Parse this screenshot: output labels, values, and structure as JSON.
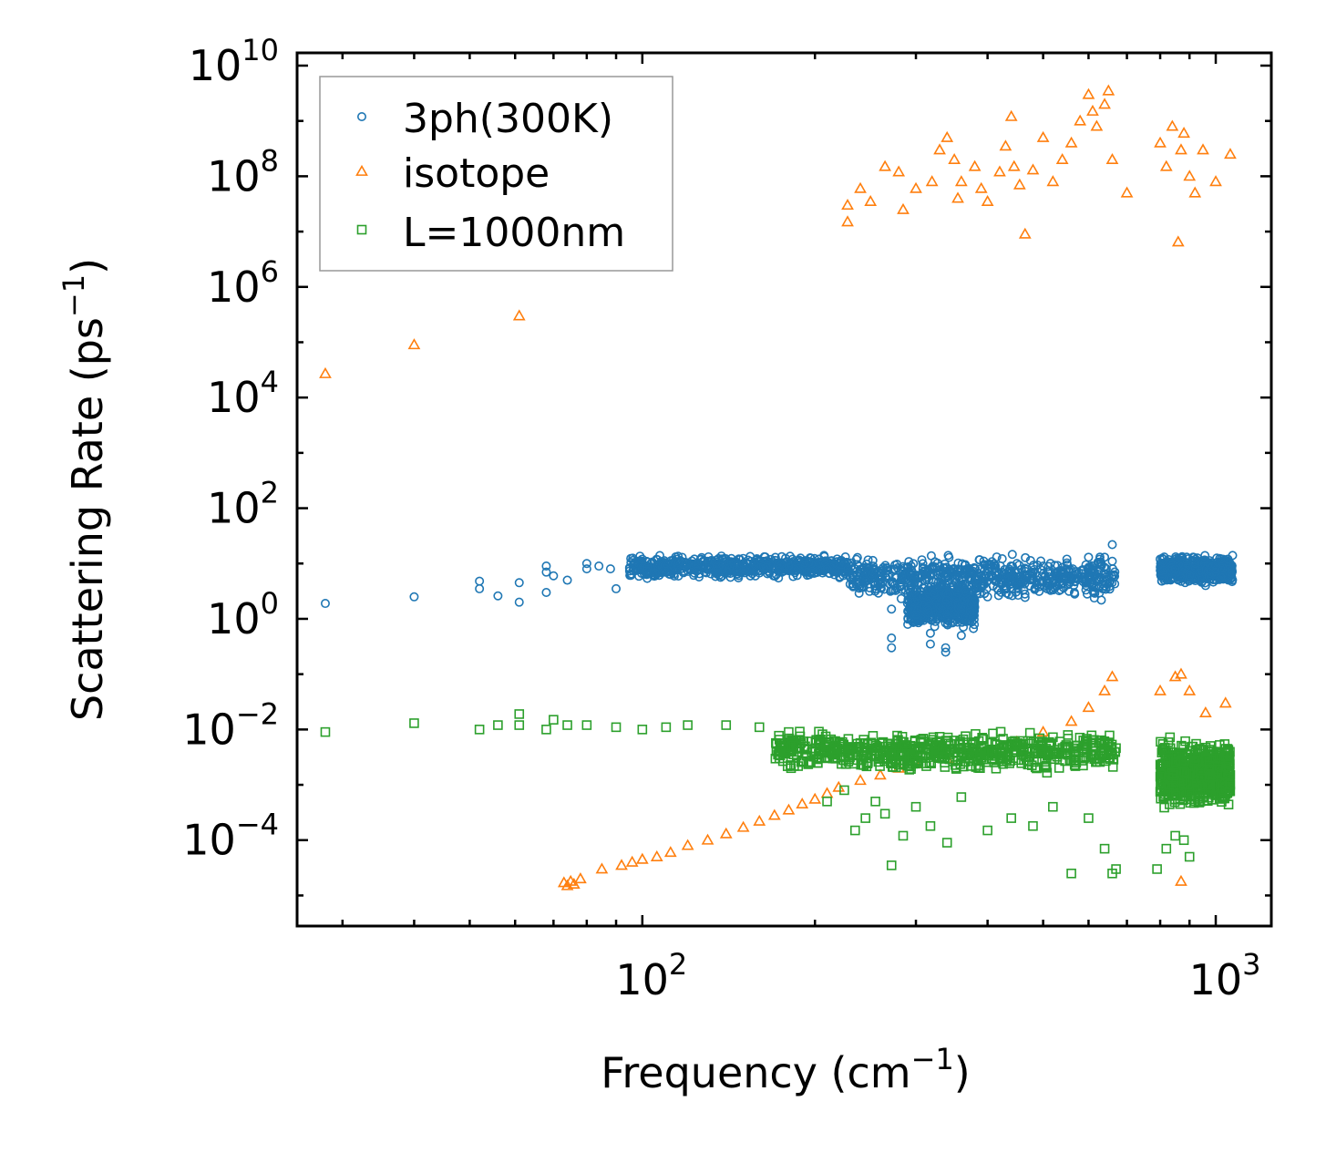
{
  "chart_data": {
    "type": "scatter",
    "xscale": "log",
    "yscale": "log",
    "xlim": [
      25,
      1250
    ],
    "ylim": [
      2.8e-06,
      17000000000
    ],
    "xlabel": {
      "main": "Frequency (cm",
      "sup": "−1",
      "close": ")"
    },
    "ylabel": {
      "main": "Scattering Rate (ps",
      "sup": "−1",
      "close": ")"
    },
    "x_ticks": [
      {
        "value": 100,
        "base": "10",
        "exp": "2"
      },
      {
        "value": 1000,
        "base": "10",
        "exp": "3"
      }
    ],
    "y_ticks": [
      {
        "value": 0.0001,
        "base": "10",
        "exp": "−4"
      },
      {
        "value": 0.01,
        "base": "10",
        "exp": "−2"
      },
      {
        "value": 1,
        "base": "10",
        "exp": "0"
      },
      {
        "value": 100,
        "base": "10",
        "exp": "2"
      },
      {
        "value": 10000,
        "base": "10",
        "exp": "4"
      },
      {
        "value": 1000000,
        "base": "10",
        "exp": "6"
      },
      {
        "value": 100000000,
        "base": "10",
        "exp": "8"
      },
      {
        "value": 10000000000,
        "base": "10",
        "exp": "10"
      }
    ],
    "legend": {
      "location": "top-left"
    },
    "series": [
      {
        "name": "3ph(300K)",
        "marker": "circle",
        "color": "#1f77b4",
        "points": [
          [
            28,
            1.9
          ],
          [
            40,
            2.5
          ],
          [
            52,
            4.8
          ],
          [
            52,
            3.5
          ],
          [
            56,
            2.6
          ],
          [
            61,
            2.0
          ],
          [
            61,
            4.5
          ],
          [
            68,
            9
          ],
          [
            68,
            7
          ],
          [
            68,
            3
          ],
          [
            70,
            6
          ],
          [
            74,
            5
          ],
          [
            80,
            10
          ],
          [
            80,
            8
          ],
          [
            84,
            9
          ],
          [
            88,
            8
          ],
          [
            90,
            3.5
          ],
          [
            100,
            12
          ],
          [
            110,
            10
          ],
          [
            130,
            11
          ],
          [
            150,
            10
          ],
          [
            180,
            9
          ],
          [
            210,
            8
          ],
          [
            240,
            7
          ],
          [
            260,
            6
          ],
          [
            272,
            1.5
          ],
          [
            272,
            0.45
          ],
          [
            272,
            0.3
          ],
          [
            300,
            1.2
          ],
          [
            318,
            0.55
          ],
          [
            318,
            0.35
          ],
          [
            338,
            0.3
          ],
          [
            338,
            0.25
          ],
          [
            360,
            0.5
          ],
          [
            360,
            1.5
          ],
          [
            400,
            2.5
          ],
          [
            450,
            10
          ],
          [
            500,
            9
          ],
          [
            550,
            12
          ],
          [
            600,
            13
          ],
          [
            640,
            13
          ],
          [
            660,
            22
          ],
          [
            660,
            11
          ],
          [
            800,
            12
          ],
          [
            850,
            8
          ],
          [
            900,
            6
          ],
          [
            960,
            4
          ],
          [
            1000,
            7
          ],
          [
            1050,
            12
          ],
          [
            1070,
            14
          ]
        ],
        "bands": [
          {
            "x_range": [
              95,
              230
            ],
            "y_range": [
              5,
              15
            ]
          },
          {
            "x_range": [
              230,
              670
            ],
            "y_range": [
              2,
              16
            ]
          },
          {
            "x_range": [
              290,
              380
            ],
            "y_range": [
              0.6,
              5
            ]
          },
          {
            "x_range": [
              800,
              1070
            ],
            "y_range": [
              4,
              15
            ]
          }
        ]
      },
      {
        "name": "isotope",
        "marker": "triangle",
        "color": "#ff7f0e",
        "points": [
          [
            28,
            27000
          ],
          [
            40,
            90000
          ],
          [
            61,
            300000
          ],
          [
            73,
            1.7e-05
          ],
          [
            74,
            1.5e-05
          ],
          [
            75,
            1.8e-05
          ],
          [
            76,
            1.6e-05
          ],
          [
            78,
            2e-05
          ],
          [
            85,
            3e-05
          ],
          [
            92,
            3.5e-05
          ],
          [
            96,
            4e-05
          ],
          [
            100,
            4.5e-05
          ],
          [
            106,
            5e-05
          ],
          [
            112,
            6e-05
          ],
          [
            120,
            8e-05
          ],
          [
            130,
            0.0001
          ],
          [
            140,
            0.00013
          ],
          [
            150,
            0.00017
          ],
          [
            160,
            0.00022
          ],
          [
            170,
            0.00028
          ],
          [
            180,
            0.00035
          ],
          [
            190,
            0.00045
          ],
          [
            200,
            0.00055
          ],
          [
            210,
            0.0007
          ],
          [
            220,
            0.0009
          ],
          [
            240,
            0.0012
          ],
          [
            260,
            0.0015
          ],
          [
            280,
            0.002
          ],
          [
            300,
            0.0024
          ],
          [
            340,
            0.003
          ],
          [
            400,
            0.004
          ],
          [
            450,
            0.006
          ],
          [
            500,
            0.009
          ],
          [
            560,
            0.014
          ],
          [
            600,
            0.025
          ],
          [
            640,
            0.05
          ],
          [
            660,
            0.09
          ],
          [
            800,
            0.05
          ],
          [
            850,
            0.09
          ],
          [
            870,
            0.1
          ],
          [
            900,
            0.05
          ],
          [
            960,
            0.02
          ],
          [
            1040,
            0.03
          ],
          [
            870,
            1.8e-05
          ],
          [
            228,
            15000000
          ],
          [
            228,
            30000000
          ],
          [
            240,
            60000000
          ],
          [
            250,
            35000000
          ],
          [
            265,
            150000000
          ],
          [
            280,
            120000000
          ],
          [
            285,
            25000000
          ],
          [
            300,
            60000000
          ],
          [
            320,
            80000000
          ],
          [
            330,
            300000000
          ],
          [
            340,
            500000000
          ],
          [
            350,
            200000000
          ],
          [
            355,
            40000000
          ],
          [
            360,
            80000000
          ],
          [
            380,
            150000000
          ],
          [
            390,
            60000000
          ],
          [
            400,
            35000000
          ],
          [
            420,
            120000000
          ],
          [
            430,
            350000000
          ],
          [
            440,
            1200000000
          ],
          [
            445,
            150000000
          ],
          [
            455,
            70000000
          ],
          [
            465,
            9000000
          ],
          [
            480,
            130000000
          ],
          [
            500,
            500000000
          ],
          [
            520,
            80000000
          ],
          [
            540,
            200000000
          ],
          [
            560,
            400000000
          ],
          [
            580,
            1000000000
          ],
          [
            600,
            3000000000
          ],
          [
            610,
            1500000000
          ],
          [
            620,
            800000000
          ],
          [
            640,
            2000000000
          ],
          [
            650,
            3500000000
          ],
          [
            660,
            200000000
          ],
          [
            700,
            50000000
          ],
          [
            800,
            400000000
          ],
          [
            820,
            150000000
          ],
          [
            840,
            800000000
          ],
          [
            860,
            6500000
          ],
          [
            870,
            300000000
          ],
          [
            880,
            600000000
          ],
          [
            900,
            100000000
          ],
          [
            920,
            50000000
          ],
          [
            950,
            300000000
          ],
          [
            1000,
            80000000
          ],
          [
            1060,
            250000000
          ]
        ]
      },
      {
        "name": "L=1000nm",
        "marker": "square",
        "color": "#2ca02c",
        "points": [
          [
            28,
            0.009
          ],
          [
            40,
            0.013
          ],
          [
            52,
            0.01
          ],
          [
            56,
            0.012
          ],
          [
            61,
            0.019
          ],
          [
            61,
            0.012
          ],
          [
            68,
            0.01
          ],
          [
            70,
            0.015
          ],
          [
            74,
            0.012
          ],
          [
            80,
            0.012
          ],
          [
            90,
            0.011
          ],
          [
            100,
            0.01
          ],
          [
            110,
            0.011
          ],
          [
            120,
            0.012
          ],
          [
            140,
            0.012
          ],
          [
            160,
            0.011
          ],
          [
            180,
            0.009
          ],
          [
            210,
            0.0005
          ],
          [
            225,
            0.0008
          ],
          [
            235,
            0.00015
          ],
          [
            245,
            0.00025
          ],
          [
            255,
            0.0005
          ],
          [
            265,
            0.0003
          ],
          [
            272,
            3.5e-05
          ],
          [
            285,
            0.00012
          ],
          [
            300,
            0.0004
          ],
          [
            318,
            0.00018
          ],
          [
            340,
            9e-05
          ],
          [
            360,
            0.0006
          ],
          [
            400,
            0.00015
          ],
          [
            440,
            0.00025
          ],
          [
            480,
            0.00018
          ],
          [
            520,
            0.0004
          ],
          [
            560,
            2.5e-05
          ],
          [
            600,
            0.00025
          ],
          [
            640,
            7e-05
          ],
          [
            660,
            2.5e-05
          ],
          [
            670,
            3e-05
          ],
          [
            790,
            3e-05
          ],
          [
            820,
            7e-05
          ],
          [
            850,
            0.00012
          ],
          [
            880,
            0.0001
          ],
          [
            900,
            5e-05
          ],
          [
            940,
            0.0005
          ],
          [
            980,
            0.0015
          ],
          [
            1000,
            0.003
          ],
          [
            1040,
            0.0015
          ],
          [
            1060,
            0.001
          ]
        ],
        "bands": [
          {
            "x_range": [
              170,
              670
            ],
            "y_range": [
              0.0015,
              0.011
            ]
          },
          {
            "x_range": [
              800,
              1060
            ],
            "y_range": [
              0.0003,
              0.008
            ]
          }
        ]
      }
    ]
  }
}
